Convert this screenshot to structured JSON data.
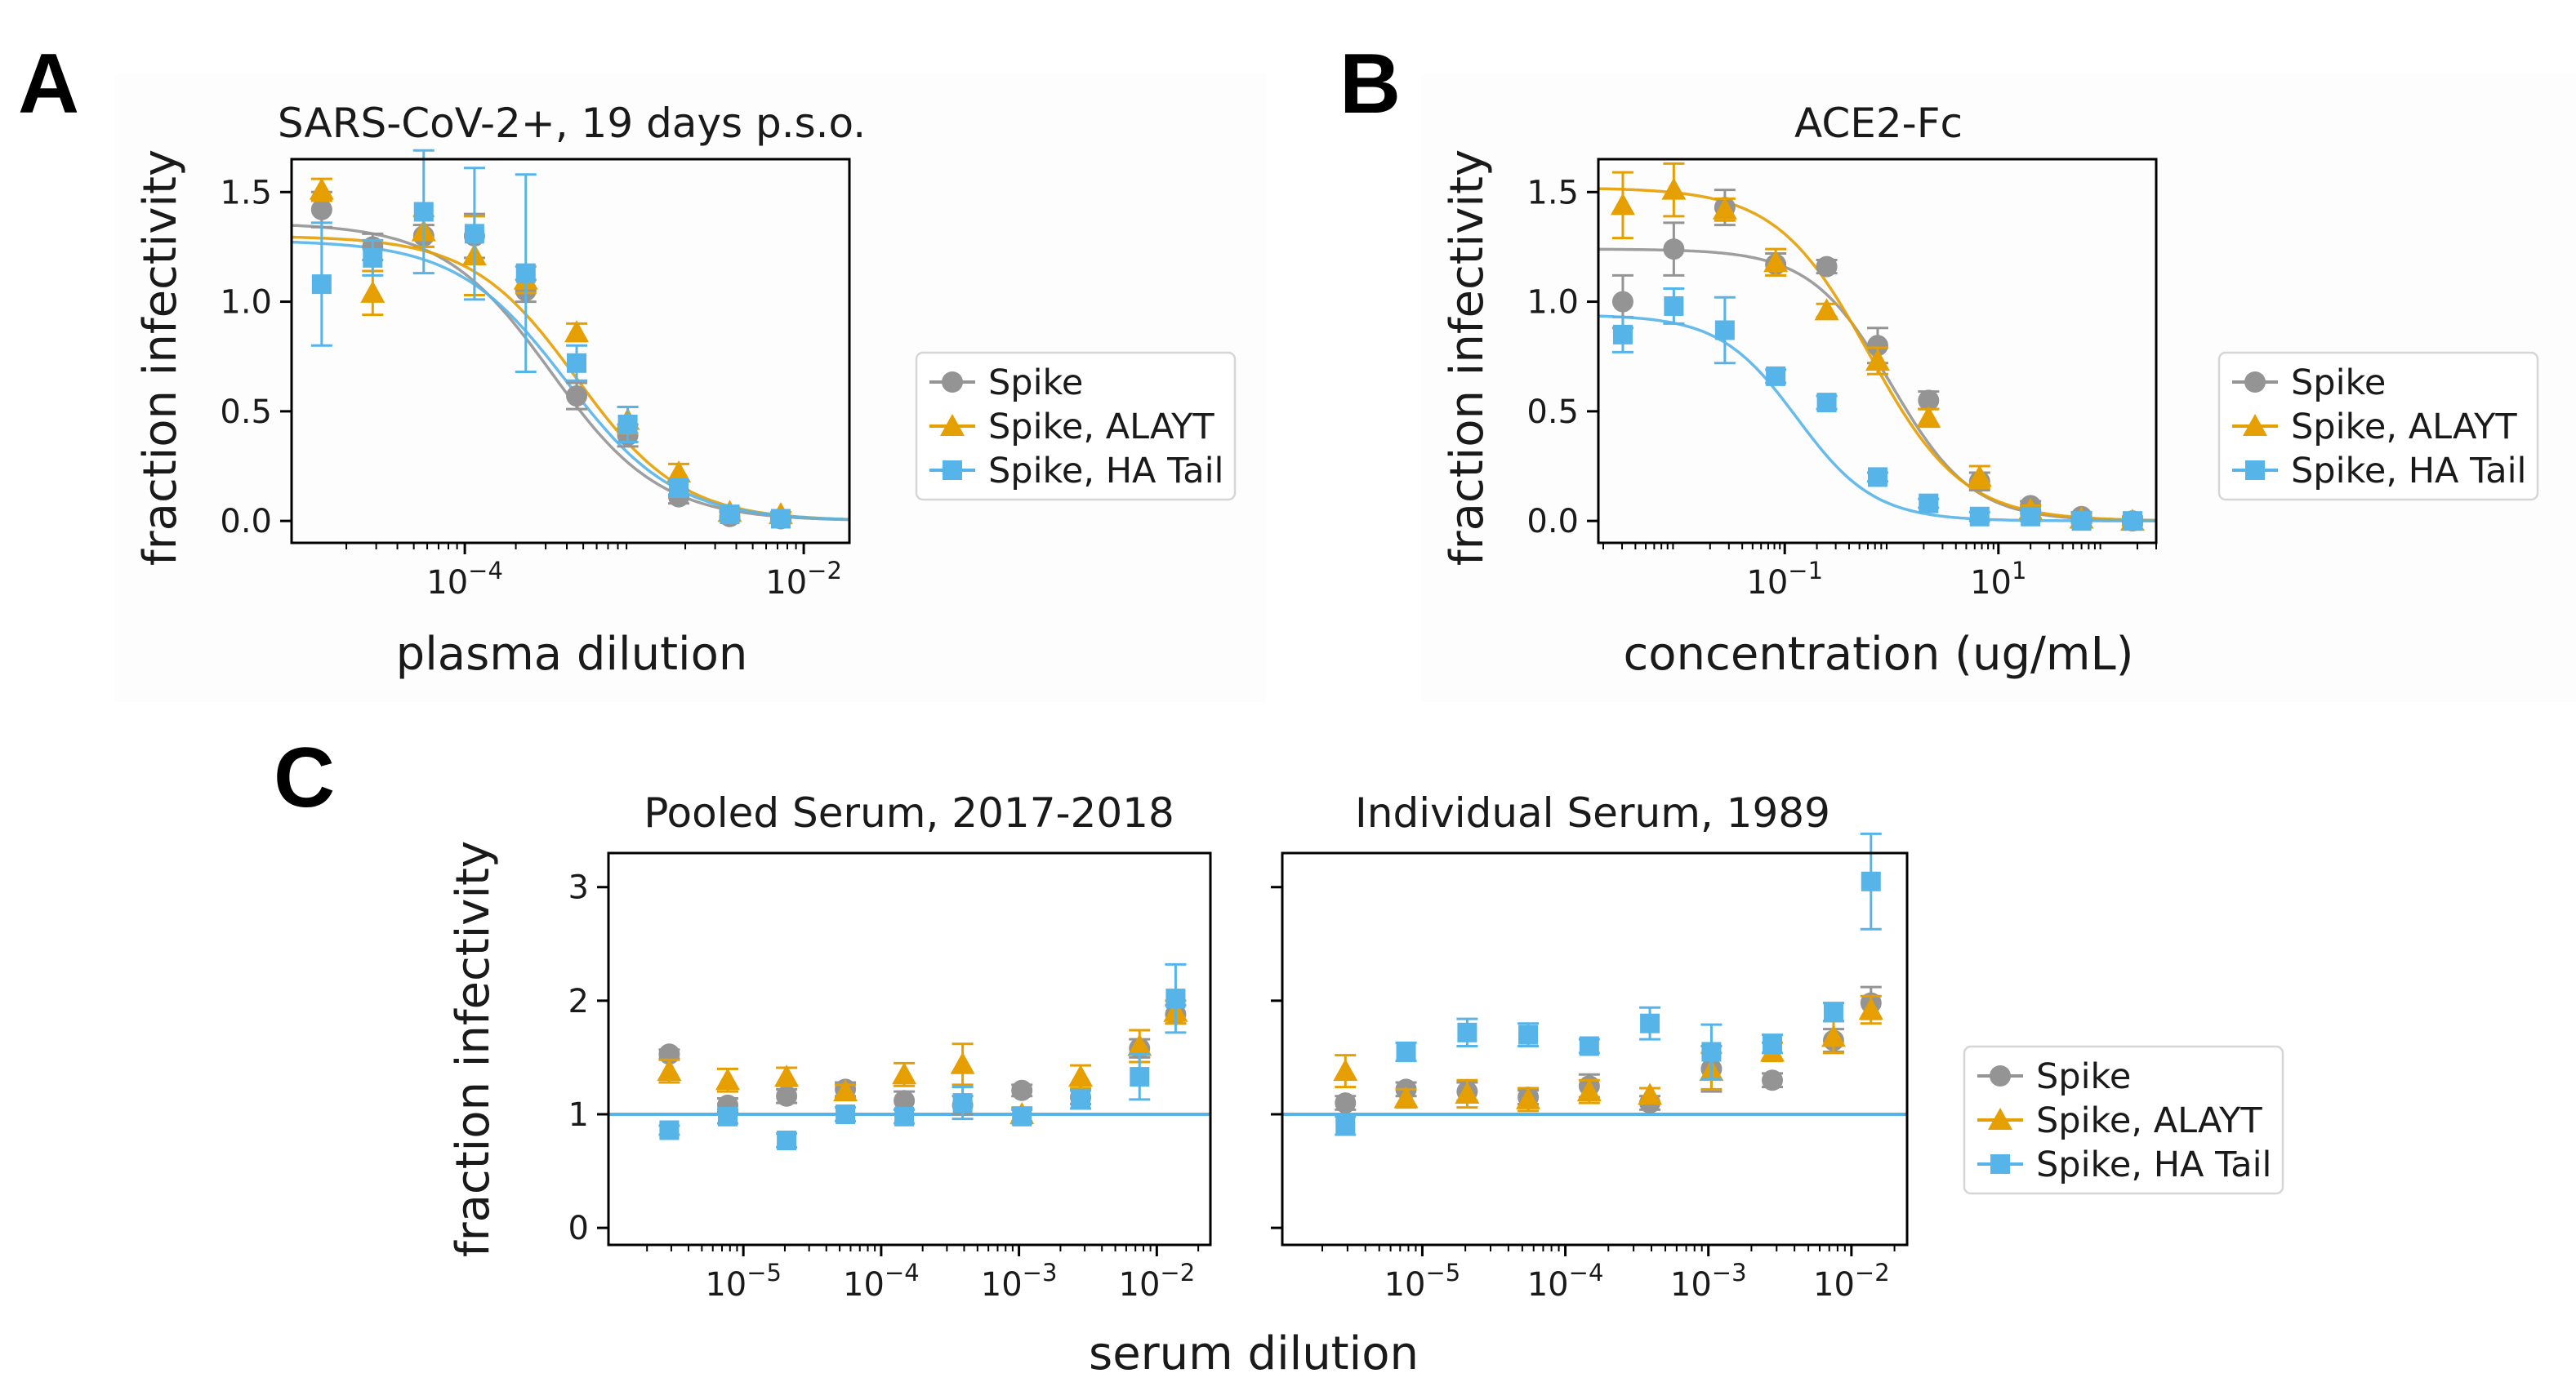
{
  "colors": {
    "spike": "#949494",
    "alayt": "#e69f00",
    "ha_tail": "#56b4e9"
  },
  "legend": {
    "items": [
      "Spike",
      "Spike, ALAYT",
      "Spike, HA Tail"
    ]
  },
  "panels": {
    "A": {
      "letter": "A",
      "title": "SARS-CoV-2+, 19 days p.s.o.",
      "ylabel": "fraction infectivity",
      "xlabel": "plasma dilution"
    },
    "B": {
      "letter": "B",
      "title": "ACE2-Fc",
      "ylabel": "fraction infectivity",
      "xlabel": "concentration (ug/mL)"
    },
    "C": {
      "letter": "C",
      "title_left": "Pooled Serum, 2017-2018",
      "title_right": "Individual Serum, 1989",
      "ylabel": "fraction infectivity",
      "xlabel": "serum dilution"
    }
  },
  "chart_data": [
    {
      "id": "A",
      "type": "scatter",
      "title": "SARS-CoV-2+, 19 days p.s.o.",
      "xlabel": "plasma dilution",
      "ylabel": "fraction infectivity",
      "xscale": "log",
      "xlim": [
        9.5e-06,
        0.0186
      ],
      "ylim": [
        -0.1,
        1.65
      ],
      "xticks": [
        {
          "value": 0.0001,
          "base": "10",
          "exp": "−4"
        },
        {
          "value": 0.01,
          "base": "10",
          "exp": "−2"
        }
      ],
      "yticks": [
        {
          "value": 0,
          "label": "0.0"
        },
        {
          "value": 0.5,
          "label": "0.5"
        },
        {
          "value": 1.0,
          "label": "1.0"
        },
        {
          "value": 1.5,
          "label": "1.5"
        }
      ],
      "series": [
        {
          "name": "Spike",
          "color_key": "spike",
          "marker": "circle",
          "x": [
            1.43e-05,
            2.86e-05,
            5.72e-05,
            0.000114,
            0.000229,
            0.000457,
            0.000915,
            0.00183,
            0.00366,
            0.00732
          ],
          "y": [
            1.42,
            1.25,
            1.3,
            1.3,
            1.05,
            0.57,
            0.39,
            0.11,
            0.02,
            0.01
          ],
          "err": [
            0.08,
            0.06,
            0.05,
            0.1,
            0.05,
            0.06,
            0.05,
            0.03,
            0.02,
            0.01
          ],
          "fit": {
            "top": 1.36,
            "ic50": 0.000322,
            "hill": 1.35
          }
        },
        {
          "name": "Spike, ALAYT",
          "color_key": "alayt",
          "marker": "triangle",
          "x": [
            1.43e-05,
            2.86e-05,
            5.72e-05,
            0.000114,
            0.000229,
            0.000457,
            0.000915,
            0.00183,
            0.00366,
            0.00732
          ],
          "y": [
            1.51,
            1.04,
            1.32,
            1.21,
            1.1,
            0.86,
            0.46,
            0.22,
            0.04,
            0.03
          ],
          "err": [
            0.05,
            0.1,
            0.07,
            0.18,
            0.06,
            0.04,
            0.06,
            0.04,
            0.02,
            0.01
          ],
          "fit": {
            "top": 1.3,
            "ic50": 0.000457,
            "hill": 1.4
          }
        },
        {
          "name": "Spike, HA Tail",
          "color_key": "ha_tail",
          "marker": "square",
          "x": [
            1.43e-05,
            2.86e-05,
            5.72e-05,
            0.000114,
            0.000229,
            0.000457,
            0.000915,
            0.00183,
            0.00366,
            0.00732
          ],
          "y": [
            1.08,
            1.2,
            1.41,
            1.31,
            1.13,
            0.72,
            0.44,
            0.15,
            0.03,
            0.01
          ],
          "err": [
            0.28,
            0.08,
            0.28,
            0.3,
            0.45,
            0.08,
            0.08,
            0.03,
            0.02,
            0.01
          ],
          "fit": {
            "top": 1.28,
            "ic50": 0.000395,
            "hill": 1.35
          }
        }
      ]
    },
    {
      "id": "B",
      "type": "scatter",
      "title": "ACE2-Fc",
      "xlabel": "concentration (ug/mL)",
      "ylabel": "fraction infectivity",
      "xscale": "log",
      "xlim": [
        0.0018,
        300
      ],
      "ylim": [
        -0.1,
        1.65
      ],
      "xticks": [
        {
          "value": 0.1,
          "base": "10",
          "exp": "−1"
        },
        {
          "value": 10,
          "base": "10",
          "exp": "1"
        }
      ],
      "yticks": [
        {
          "value": 0,
          "label": "0.0"
        },
        {
          "value": 0.5,
          "label": "0.5"
        },
        {
          "value": 1.0,
          "label": "1.0"
        },
        {
          "value": 1.5,
          "label": "1.5"
        }
      ],
      "series": [
        {
          "name": "Spike",
          "color_key": "spike",
          "marker": "circle",
          "x": [
            0.00305,
            0.00915,
            0.0275,
            0.0823,
            0.247,
            0.741,
            2.22,
            6.67,
            20,
            60,
            180
          ],
          "y": [
            1.0,
            1.24,
            1.43,
            1.17,
            1.16,
            0.8,
            0.55,
            0.18,
            0.07,
            0.02,
            0.0
          ],
          "err": [
            0.12,
            0.12,
            0.08,
            0.05,
            0.03,
            0.08,
            0.04,
            0.04,
            0.02,
            0.02,
            0.02
          ],
          "fit": {
            "top": 1.24,
            "ic50": 1.0,
            "hill": 1.15
          }
        },
        {
          "name": "Spike, ALAYT",
          "color_key": "alayt",
          "marker": "triangle",
          "x": [
            0.00305,
            0.00915,
            0.0275,
            0.0823,
            0.247,
            0.741,
            2.22,
            6.67,
            20,
            60,
            180
          ],
          "y": [
            1.44,
            1.51,
            1.42,
            1.18,
            0.96,
            0.73,
            0.47,
            0.2,
            0.05,
            0.01,
            0.0
          ],
          "err": [
            0.15,
            0.12,
            0.05,
            0.06,
            0.03,
            0.06,
            0.04,
            0.05,
            0.02,
            0.02,
            0.02
          ],
          "fit": {
            "top": 1.52,
            "ic50": 0.62,
            "hill": 1.0
          }
        },
        {
          "name": "Spike, HA Tail",
          "color_key": "ha_tail",
          "marker": "square",
          "x": [
            0.00305,
            0.00915,
            0.0275,
            0.0823,
            0.247,
            0.741,
            2.22,
            6.67,
            20,
            60,
            180
          ],
          "y": [
            0.85,
            0.98,
            0.87,
            0.66,
            0.54,
            0.2,
            0.08,
            0.02,
            0.02,
            0.0,
            0.0
          ],
          "err": [
            0.08,
            0.08,
            0.15,
            0.03,
            0.03,
            0.02,
            0.02,
            0.02,
            0.02,
            0.01,
            0.01
          ],
          "fit": {
            "top": 0.94,
            "ic50": 0.13,
            "hill": 1.2
          }
        }
      ]
    },
    {
      "id": "C-left",
      "type": "scatter",
      "title": "Pooled Serum, 2017-2018",
      "xlabel": "serum dilution",
      "ylabel": "fraction infectivity",
      "xscale": "log",
      "xlim": [
        1.05e-06,
        0.0245
      ],
      "ylim": [
        -0.15,
        3.3
      ],
      "reference_line": 1,
      "xticks": [
        {
          "value": 1e-05,
          "base": "10",
          "exp": "−5"
        },
        {
          "value": 0.0001,
          "base": "10",
          "exp": "−4"
        },
        {
          "value": 0.001,
          "base": "10",
          "exp": "−3"
        },
        {
          "value": 0.01,
          "base": "10",
          "exp": "−2"
        }
      ],
      "yticks": [
        {
          "value": 0,
          "label": "0"
        },
        {
          "value": 1,
          "label": "1"
        },
        {
          "value": 2,
          "label": "2"
        },
        {
          "value": 3,
          "label": "3"
        }
      ],
      "series": [
        {
          "name": "Spike",
          "color_key": "spike",
          "marker": "circle",
          "x": [
            2.9e-06,
            7.7e-06,
            2.06e-05,
            5.5e-05,
            0.000147,
            0.00039,
            0.00105,
            0.0028,
            0.0075,
            0.0137
          ],
          "y": [
            1.53,
            1.08,
            1.16,
            1.22,
            1.12,
            1.08,
            1.21,
            1.15,
            1.58,
            1.88
          ],
          "err": [
            0.04,
            0.06,
            0.06,
            0.06,
            0.08,
            0.08,
            0.05,
            0.06,
            0.08,
            0.08
          ]
        },
        {
          "name": "Spike, ALAYT",
          "color_key": "alayt",
          "marker": "triangle",
          "x": [
            2.9e-06,
            7.7e-06,
            2.06e-05,
            5.5e-05,
            0.000147,
            0.00039,
            0.00105,
            0.0028,
            0.0075,
            0.0137
          ],
          "y": [
            1.38,
            1.3,
            1.33,
            1.2,
            1.35,
            1.44,
            1.0,
            1.33,
            1.6,
            1.9
          ],
          "err": [
            0.1,
            0.1,
            0.08,
            0.06,
            0.1,
            0.18,
            0.06,
            0.1,
            0.14,
            0.1
          ]
        },
        {
          "name": "Spike, HA Tail",
          "color_key": "ha_tail",
          "marker": "square",
          "x": [
            2.9e-06,
            7.7e-06,
            2.06e-05,
            5.5e-05,
            0.000147,
            0.00039,
            0.00105,
            0.0028,
            0.0075,
            0.0137
          ],
          "y": [
            0.86,
            0.98,
            0.77,
            1.0,
            0.98,
            1.1,
            0.98,
            1.13,
            1.33,
            2.02
          ],
          "err": [
            0.04,
            0.06,
            0.06,
            0.06,
            0.06,
            0.14,
            0.06,
            0.08,
            0.2,
            0.3
          ]
        }
      ]
    },
    {
      "id": "C-right",
      "type": "scatter",
      "title": "Individual Serum, 1989",
      "xlabel": "serum dilution",
      "ylabel": "fraction infectivity",
      "xscale": "log",
      "xlim": [
        1.05e-06,
        0.0245
      ],
      "ylim": [
        -0.15,
        3.3
      ],
      "reference_line": 1,
      "xticks": [
        {
          "value": 1e-05,
          "base": "10",
          "exp": "−5"
        },
        {
          "value": 0.0001,
          "base": "10",
          "exp": "−4"
        },
        {
          "value": 0.001,
          "base": "10",
          "exp": "−3"
        },
        {
          "value": 0.01,
          "base": "10",
          "exp": "−2"
        }
      ],
      "yticks": [
        {
          "value": 0,
          "label": ""
        },
        {
          "value": 1,
          "label": ""
        },
        {
          "value": 2,
          "label": ""
        },
        {
          "value": 3,
          "label": ""
        }
      ],
      "series": [
        {
          "name": "Spike",
          "color_key": "spike",
          "marker": "circle",
          "x": [
            2.9e-06,
            7.7e-06,
            2.06e-05,
            5.5e-05,
            0.000147,
            0.00039,
            0.00105,
            0.0028,
            0.0075,
            0.0137
          ],
          "y": [
            1.1,
            1.22,
            1.2,
            1.15,
            1.25,
            1.1,
            1.4,
            1.3,
            1.65,
            1.98
          ],
          "err": [
            0.06,
            0.06,
            0.08,
            0.06,
            0.1,
            0.06,
            0.2,
            0.06,
            0.1,
            0.14
          ]
        },
        {
          "name": "Spike, ALAYT",
          "color_key": "alayt",
          "marker": "triangle",
          "x": [
            2.9e-06,
            7.7e-06,
            2.06e-05,
            5.5e-05,
            0.000147,
            0.00039,
            0.00105,
            0.0028,
            0.0075,
            0.0137
          ],
          "y": [
            1.38,
            1.14,
            1.18,
            1.13,
            1.2,
            1.17,
            1.38,
            1.55,
            1.68,
            1.92
          ],
          "err": [
            0.14,
            0.08,
            0.12,
            0.1,
            0.1,
            0.06,
            0.16,
            0.08,
            0.14,
            0.12
          ]
        },
        {
          "name": "Spike, HA Tail",
          "color_key": "ha_tail",
          "marker": "square",
          "x": [
            2.9e-06,
            7.7e-06,
            2.06e-05,
            5.5e-05,
            0.000147,
            0.00039,
            0.00105,
            0.0028,
            0.0075,
            0.0137
          ],
          "y": [
            0.9,
            1.55,
            1.72,
            1.7,
            1.6,
            1.8,
            1.55,
            1.62,
            1.9,
            3.05
          ],
          "err": [
            0.08,
            0.08,
            0.12,
            0.1,
            0.06,
            0.14,
            0.24,
            0.08,
            0.08,
            0.42
          ]
        }
      ]
    }
  ]
}
